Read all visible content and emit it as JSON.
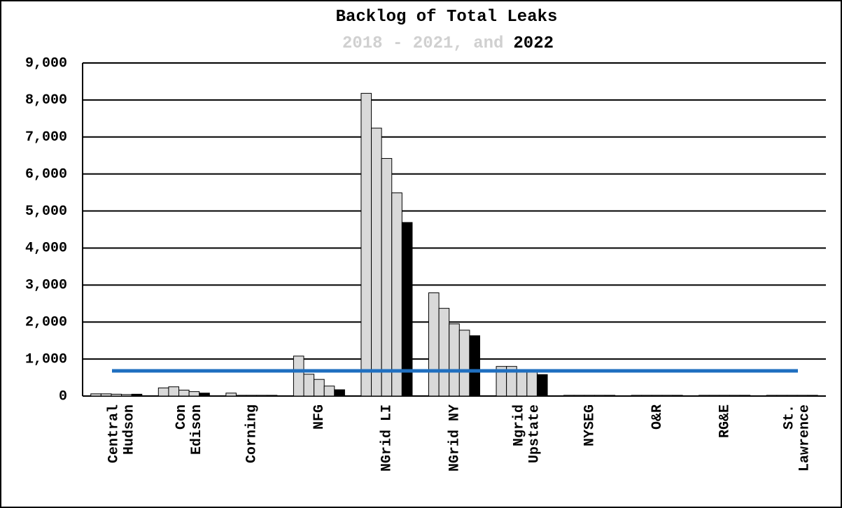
{
  "chart_data": {
    "type": "bar",
    "title": "Backlog of Total Leaks",
    "subtitle": [
      {
        "text": "2018 - 2021, and",
        "color": "#d0d0d0"
      },
      {
        "text": "2022",
        "color": "#000000"
      }
    ],
    "categories": [
      "Central\nHudson",
      "Con\nEdison",
      "Corning",
      "NFG",
      "NGrid LI",
      "NGrid NY",
      "Ngrid\nUpstate",
      "NYSEG",
      "O&R",
      "RG&E",
      "St.\nLawrence"
    ],
    "series": [
      {
        "color": "#d9d9d9",
        "values": [
          60,
          220,
          80,
          1080,
          8180,
          2790,
          800,
          20,
          20,
          20,
          20
        ]
      },
      {
        "color": "#d9d9d9",
        "values": [
          60,
          250,
          20,
          590,
          7240,
          2370,
          800,
          20,
          20,
          20,
          20
        ]
      },
      {
        "color": "#d9d9d9",
        "values": [
          50,
          160,
          20,
          450,
          6420,
          1950,
          700,
          20,
          20,
          20,
          20
        ]
      },
      {
        "color": "#d9d9d9",
        "values": [
          40,
          120,
          20,
          270,
          5490,
          1780,
          650,
          20,
          20,
          20,
          20
        ]
      },
      {
        "color": "#000000",
        "values": [
          50,
          80,
          20,
          170,
          4690,
          1630,
          580,
          20,
          20,
          20,
          20
        ]
      }
    ],
    "hline": {
      "value": 680,
      "color": "#1f6fc0"
    },
    "ylim": [
      0,
      9000
    ],
    "yticks": [
      0,
      {
        "value": 1000,
        "label": "1,000"
      },
      {
        "value": 2000,
        "label": "2,000"
      },
      {
        "value": 3000,
        "label": "3,000"
      },
      {
        "value": 4000,
        "label": "4,000"
      },
      {
        "value": 5000,
        "label": "5,000"
      },
      {
        "value": 6000,
        "label": "6,000"
      },
      {
        "value": 7000,
        "label": "7,000"
      },
      {
        "value": 8000,
        "label": "8,000"
      },
      {
        "value": 9000,
        "label": "9,000"
      }
    ],
    "grid": true
  }
}
